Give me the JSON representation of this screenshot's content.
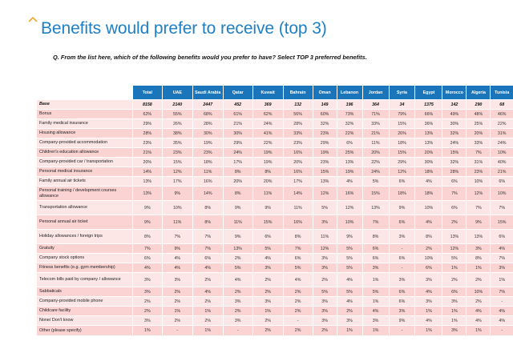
{
  "header": {
    "title": "Benefits would prefer to receive (top 3)",
    "accent_color": "#f0a830",
    "title_color": "#1f7fc4"
  },
  "question": "Q. From the list here, which of the following benefits would you prefer to have? Select TOP 3 preferred benefits.",
  "table": {
    "header_color": "#1a75bb",
    "columns": [
      "Total",
      "UAE",
      "Saudi Arabia",
      "Qatar",
      "Kuwait",
      "Bahrain",
      "Oman",
      "Lebanon",
      "Jordan",
      "Syria",
      "Egypt",
      "Morocco",
      "Algeria",
      "Tunisia"
    ],
    "rows": [
      {
        "label": "Base",
        "values": [
          "8158",
          "2140",
          "2447",
          "452",
          "369",
          "132",
          "149",
          "196",
          "364",
          "34",
          "1375",
          "142",
          "290",
          "68"
        ]
      },
      {
        "label": "Bonus",
        "values": [
          "62%",
          "55%",
          "68%",
          "61%",
          "62%",
          "56%",
          "60%",
          "73%",
          "71%",
          "79%",
          "66%",
          "49%",
          "48%",
          "46%"
        ]
      },
      {
        "label": "Family medical insurance",
        "values": [
          "29%",
          "26%",
          "28%",
          "21%",
          "24%",
          "28%",
          "32%",
          "32%",
          "33%",
          "15%",
          "36%",
          "30%",
          "25%",
          "22%"
        ]
      },
      {
        "label": "Housing allowance",
        "values": [
          "28%",
          "38%",
          "30%",
          "30%",
          "41%",
          "33%",
          "23%",
          "22%",
          "21%",
          "26%",
          "13%",
          "32%",
          "20%",
          "31%"
        ]
      },
      {
        "label": "Company-provided accommodation",
        "values": [
          "23%",
          "35%",
          "19%",
          "29%",
          "22%",
          "23%",
          "29%",
          "6%",
          "11%",
          "18%",
          "13%",
          "24%",
          "33%",
          "24%"
        ]
      },
      {
        "label": "Children's education allowance",
        "values": [
          "21%",
          "23%",
          "23%",
          "24%",
          "19%",
          "16%",
          "19%",
          "25%",
          "20%",
          "15%",
          "20%",
          "15%",
          "7%",
          "10%"
        ]
      },
      {
        "label": "Company-provided car / transportation",
        "values": [
          "20%",
          "15%",
          "18%",
          "17%",
          "19%",
          "20%",
          "23%",
          "13%",
          "22%",
          "29%",
          "30%",
          "32%",
          "31%",
          "40%"
        ]
      },
      {
        "label": "Personal medical insurance",
        "values": [
          "14%",
          "12%",
          "11%",
          "8%",
          "8%",
          "16%",
          "15%",
          "19%",
          "24%",
          "12%",
          "18%",
          "28%",
          "23%",
          "21%"
        ]
      },
      {
        "label": "Family annual air tickets",
        "values": [
          "13%",
          "17%",
          "16%",
          "20%",
          "20%",
          "17%",
          "13%",
          "4%",
          "5%",
          "6%",
          "4%",
          "6%",
          "10%",
          "6%"
        ]
      },
      {
        "label": "Personal training / development courses allowance",
        "values": [
          "13%",
          "9%",
          "14%",
          "8%",
          "11%",
          "14%",
          "12%",
          "16%",
          "15%",
          "18%",
          "18%",
          "7%",
          "12%",
          "10%"
        ]
      },
      {
        "label": "Transportation allowance",
        "values": [
          "9%",
          "10%",
          "8%",
          "9%",
          "9%",
          "11%",
          "5%",
          "12%",
          "13%",
          "9%",
          "10%",
          "6%",
          "7%",
          "7%"
        ]
      },
      {
        "label": "Personal annual air ticket",
        "values": [
          "9%",
          "11%",
          "8%",
          "11%",
          "15%",
          "16%",
          "3%",
          "10%",
          "7%",
          "6%",
          "4%",
          "2%",
          "9%",
          "15%"
        ]
      },
      {
        "label": "Holiday allowances / foreign trips",
        "values": [
          "8%",
          "7%",
          "7%",
          "9%",
          "6%",
          "8%",
          "11%",
          "9%",
          "8%",
          "3%",
          "8%",
          "13%",
          "13%",
          "6%"
        ]
      },
      {
        "label": "Gratuity",
        "values": [
          "7%",
          "9%",
          "7%",
          "13%",
          "5%",
          "7%",
          "12%",
          "5%",
          "6%",
          "-",
          "2%",
          "12%",
          "3%",
          "4%"
        ]
      },
      {
        "label": "Company stock options",
        "values": [
          "6%",
          "4%",
          "6%",
          "2%",
          "4%",
          "6%",
          "3%",
          "5%",
          "6%",
          "6%",
          "10%",
          "5%",
          "8%",
          "7%"
        ]
      },
      {
        "label": "Fitness benefits (e.g. gym membership)",
        "values": [
          "4%",
          "4%",
          "4%",
          "5%",
          "3%",
          "5%",
          "3%",
          "5%",
          "3%",
          "-",
          "6%",
          "1%",
          "1%",
          "3%"
        ]
      },
      {
        "label": "Telecom bills paid by company / allowance",
        "values": [
          "3%",
          "3%",
          "2%",
          "4%",
          "2%",
          "4%",
          "2%",
          "4%",
          "1%",
          "3%",
          "3%",
          "2%",
          "2%",
          "1%"
        ]
      },
      {
        "label": "Sabbaticals",
        "values": [
          "3%",
          "2%",
          "4%",
          "2%",
          "2%",
          "2%",
          "5%",
          "5%",
          "5%",
          "6%",
          "4%",
          "6%",
          "10%",
          "7%"
        ]
      },
      {
        "label": "Company-provided mobile phone",
        "values": [
          "2%",
          "2%",
          "2%",
          "3%",
          "3%",
          "2%",
          "3%",
          "4%",
          "1%",
          "6%",
          "3%",
          "3%",
          "2%",
          "-"
        ]
      },
      {
        "label": "Childcare facility",
        "values": [
          "2%",
          "1%",
          "1%",
          "2%",
          "1%",
          "2%",
          "3%",
          "2%",
          "4%",
          "3%",
          "1%",
          "1%",
          "4%",
          "4%"
        ]
      },
      {
        "label": "None/ Don't know",
        "values": [
          "3%",
          "2%",
          "2%",
          "3%",
          "2%",
          "-",
          "3%",
          "3%",
          "3%",
          "9%",
          "4%",
          "1%",
          "4%",
          "4%"
        ]
      },
      {
        "label": "Other (please specify)",
        "values": [
          "1%",
          "-",
          "1%",
          "-",
          "2%",
          "2%",
          "2%",
          "1%",
          "1%",
          "-",
          "1%",
          "3%",
          "1%",
          "-"
        ]
      }
    ]
  }
}
